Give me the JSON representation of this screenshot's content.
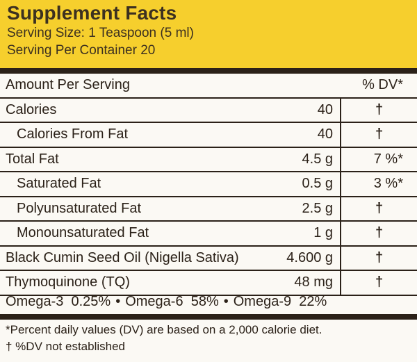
{
  "header": {
    "title": "Supplement Facts",
    "serving_size": "Serving Size: 1 Teaspoon (5 ml)",
    "servings_per_container": "Serving Per Container 20"
  },
  "table": {
    "amount_header": "Amount Per Serving",
    "dv_header": "% DV*",
    "rows": [
      {
        "name": "Calories",
        "amount": "40",
        "dv": "†"
      },
      {
        "name": "Calories From Fat",
        "amount": "40",
        "dv": "†"
      },
      {
        "name": "Total Fat",
        "amount": "4.5 g",
        "dv": "7 %*"
      },
      {
        "name": "Saturated Fat",
        "amount": "0.5 g",
        "dv": "3 %*"
      },
      {
        "name": "Polyunsaturated Fat",
        "amount": "2.5 g",
        "dv": "†"
      },
      {
        "name": "Monounsaturated Fat",
        "amount": "1 g",
        "dv": "†"
      },
      {
        "name": "Black Cumin Seed Oil (Nigella Sativa)",
        "amount": "4.600 g",
        "dv": "†"
      },
      {
        "name": "Thymoquinone (TQ)",
        "amount": "48 mg",
        "dv": "†"
      }
    ]
  },
  "omega": {
    "omega3": "Omega-3  0.25%",
    "omega6": "Omega-6  58%",
    "omega9": "Omega-9  22%",
    "separator": "•"
  },
  "footnotes": {
    "dv_note": "*Percent daily values (DV) are based on a 2,000 calorie diet.",
    "dagger_note": "† %DV not established"
  },
  "colors": {
    "header_yellow": "#f6cf2d",
    "text_dark": "#2b2118",
    "background": "#fbf9f4"
  }
}
